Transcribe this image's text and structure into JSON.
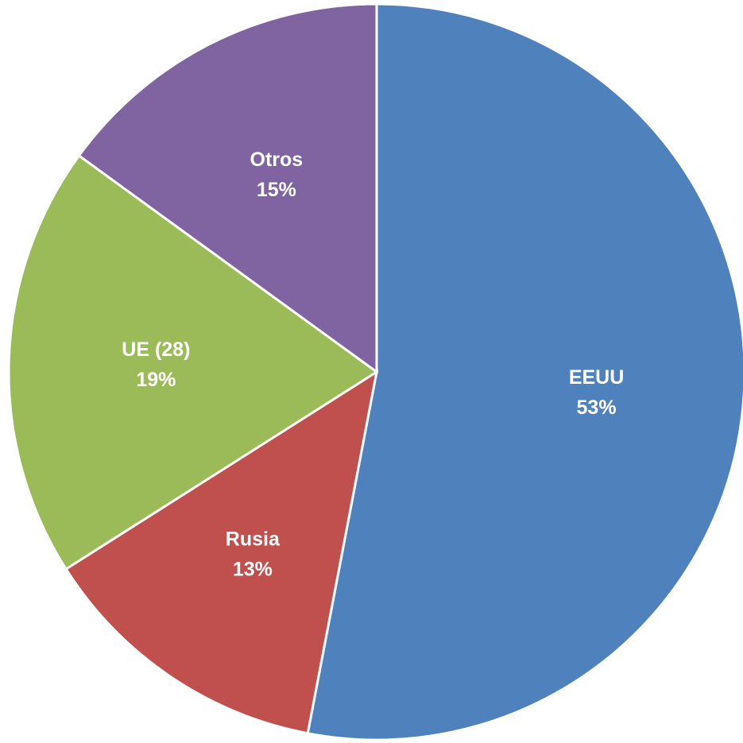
{
  "chart_data": {
    "type": "pie",
    "categories": [
      "EEUU",
      "Rusia",
      "UE (28)",
      "Otros"
    ],
    "values": [
      53,
      13,
      19,
      15
    ],
    "value_labels": [
      "53%",
      "13%",
      "19%",
      "15%"
    ],
    "colors": [
      "#4f81bd",
      "#c0504d",
      "#9bbb59",
      "#8064a2"
    ]
  }
}
